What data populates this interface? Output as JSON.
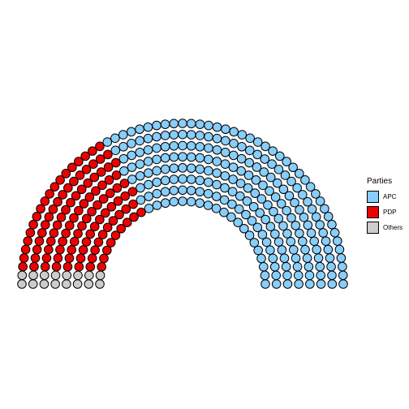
{
  "chart_data": {
    "type": "parliament",
    "title": "",
    "legend_title": "Parties",
    "legend_position": "right",
    "rows": 8,
    "parties": [
      {
        "name": "Others",
        "seats": 16,
        "color": "#CCCCCC"
      },
      {
        "name": "PDP",
        "seats": 109,
        "color": "#EE0000"
      },
      {
        "name": "APC",
        "seats": 235,
        "color": "#87CEFA"
      }
    ],
    "legend_entries": [
      {
        "name": "APC",
        "color": "#87CEFA"
      },
      {
        "name": "PDP",
        "color": "#EE0000"
      },
      {
        "name": "Others",
        "color": "#CCCCCC"
      }
    ]
  }
}
